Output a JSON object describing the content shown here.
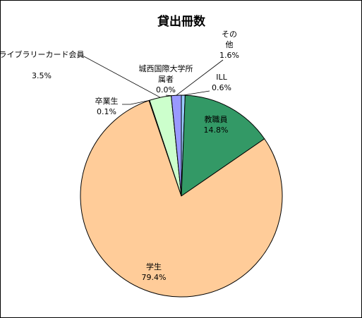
{
  "chart_data": {
    "type": "pie",
    "title": "貸出冊数",
    "start": "12 o'clock",
    "direction": "clockwise",
    "slices": [
      {
        "label": "ILL",
        "value": 0.6,
        "value_text": "0.6%",
        "color": "#99ccff"
      },
      {
        "label": "教職員",
        "value": 14.8,
        "value_text": "14.8%",
        "color": "#339966"
      },
      {
        "label": "学生",
        "value": 79.4,
        "value_text": "79.4%",
        "color": "#ffcc99"
      },
      {
        "label": "卒業生",
        "value": 0.1,
        "value_text": "0.1%",
        "color": "#ffffff"
      },
      {
        "label": "ライブラリーカード会員",
        "value": 3.5,
        "value_text": "3.5%",
        "color": "#ccffcc"
      },
      {
        "label": "城西国際大学所属者",
        "value": 0.0,
        "value_text": "0.0%",
        "color": "#ffff99"
      },
      {
        "label": "その他",
        "value": 1.6,
        "value_text": "1.6%",
        "color": "#9999ff"
      }
    ]
  }
}
